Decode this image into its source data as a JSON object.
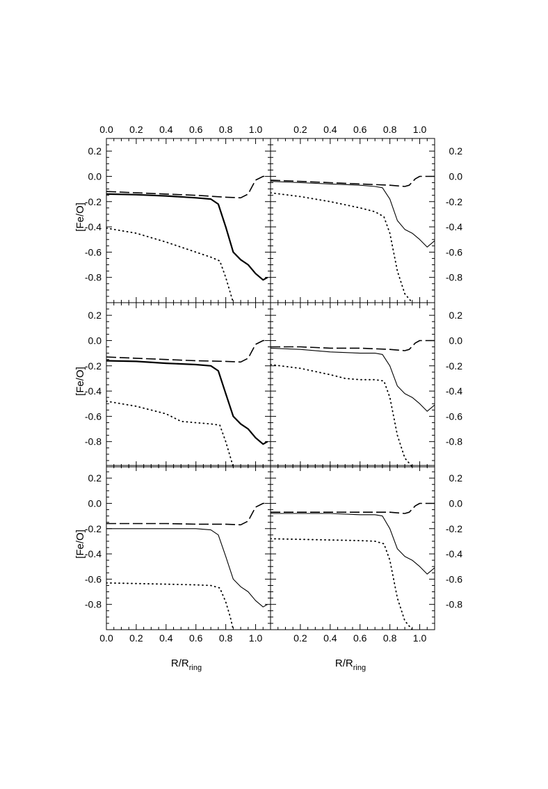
{
  "chart_data": {
    "type": "line",
    "layout": "3x2 grid of panels",
    "xlabel": "R/R",
    "xlabel_subscript": "ring",
    "ylabel": "[Fe/O]",
    "xlim": [
      0,
      1.1
    ],
    "ylim": [
      -1.0,
      0.3
    ],
    "x_ticks_left": [
      "0.0",
      "0.2",
      "0.4",
      "0.6",
      "0.8",
      "1.0"
    ],
    "x_ticks_right": [
      "0.2",
      "0.4",
      "0.6",
      "0.8",
      "1.0"
    ],
    "y_ticks": [
      "0.2",
      "0.0",
      "-0.2",
      "-0.4",
      "-0.6",
      "-0.8"
    ],
    "grid": false,
    "legend": "none",
    "line_color": "#000000",
    "panels": [
      {
        "row": 1,
        "col": 1,
        "series": [
          {
            "style": "solid",
            "width": "thick",
            "x": [
              0,
              0.2,
              0.4,
              0.6,
              0.7,
              0.75,
              0.8,
              0.85,
              0.9,
              0.95,
              1.0,
              1.05,
              1.08
            ],
            "y": [
              -0.14,
              -0.145,
              -0.155,
              -0.17,
              -0.18,
              -0.22,
              -0.4,
              -0.6,
              -0.66,
              -0.7,
              -0.77,
              -0.82,
              -0.8
            ]
          },
          {
            "style": "dashed",
            "x": [
              0,
              0.2,
              0.4,
              0.6,
              0.8,
              0.9,
              0.95,
              1.0,
              1.05,
              1.08
            ],
            "y": [
              -0.12,
              -0.13,
              -0.14,
              -0.15,
              -0.165,
              -0.17,
              -0.14,
              -0.03,
              0.0,
              0.0
            ]
          },
          {
            "style": "dotted",
            "x": [
              0,
              0.2,
              0.4,
              0.6,
              0.7,
              0.76,
              0.8,
              0.83,
              0.85
            ],
            "y": [
              -0.41,
              -0.45,
              -0.52,
              -0.6,
              -0.64,
              -0.67,
              -0.8,
              -0.92,
              -1.0
            ]
          }
        ]
      },
      {
        "row": 1,
        "col": 2,
        "series": [
          {
            "style": "solid",
            "width": "thin",
            "x": [
              0,
              0.2,
              0.4,
              0.6,
              0.7,
              0.75,
              0.8,
              0.85,
              0.9,
              0.95,
              1.0,
              1.05,
              1.1
            ],
            "y": [
              -0.04,
              -0.05,
              -0.06,
              -0.07,
              -0.08,
              -0.09,
              -0.18,
              -0.35,
              -0.42,
              -0.45,
              -0.5,
              -0.56,
              -0.51
            ]
          },
          {
            "style": "dashed",
            "x": [
              0,
              0.2,
              0.4,
              0.6,
              0.8,
              0.9,
              0.93,
              0.97,
              1.0,
              1.05,
              1.1
            ],
            "y": [
              -0.03,
              -0.04,
              -0.05,
              -0.06,
              -0.07,
              -0.08,
              -0.07,
              -0.02,
              0.0,
              0.0,
              0.0
            ]
          },
          {
            "style": "dotted",
            "x": [
              0,
              0.2,
              0.4,
              0.6,
              0.7,
              0.76,
              0.8,
              0.85,
              0.9,
              0.95
            ],
            "y": [
              -0.13,
              -0.16,
              -0.2,
              -0.25,
              -0.28,
              -0.32,
              -0.45,
              -0.75,
              -0.93,
              -1.0
            ]
          }
        ]
      },
      {
        "row": 2,
        "col": 1,
        "series": [
          {
            "style": "solid",
            "width": "thick",
            "x": [
              0,
              0.2,
              0.4,
              0.6,
              0.7,
              0.75,
              0.8,
              0.85,
              0.9,
              0.95,
              1.0,
              1.05,
              1.08
            ],
            "y": [
              -0.16,
              -0.165,
              -0.18,
              -0.19,
              -0.2,
              -0.24,
              -0.42,
              -0.6,
              -0.66,
              -0.7,
              -0.77,
              -0.82,
              -0.8
            ]
          },
          {
            "style": "dashed",
            "x": [
              0,
              0.2,
              0.4,
              0.6,
              0.8,
              0.9,
              0.95,
              1.0,
              1.05,
              1.08
            ],
            "y": [
              -0.13,
              -0.14,
              -0.15,
              -0.16,
              -0.165,
              -0.17,
              -0.14,
              -0.03,
              0.0,
              0.0
            ]
          },
          {
            "style": "dotted",
            "x": [
              0,
              0.2,
              0.4,
              0.5,
              0.6,
              0.7,
              0.76,
              0.8,
              0.83,
              0.85
            ],
            "y": [
              -0.48,
              -0.52,
              -0.58,
              -0.64,
              -0.65,
              -0.66,
              -0.67,
              -0.8,
              -0.92,
              -1.0
            ]
          }
        ]
      },
      {
        "row": 2,
        "col": 2,
        "series": [
          {
            "style": "solid",
            "width": "thin",
            "x": [
              0,
              0.2,
              0.4,
              0.6,
              0.7,
              0.75,
              0.8,
              0.85,
              0.9,
              0.95,
              1.0,
              1.05,
              1.1
            ],
            "y": [
              -0.06,
              -0.07,
              -0.09,
              -0.1,
              -0.1,
              -0.11,
              -0.2,
              -0.36,
              -0.42,
              -0.45,
              -0.5,
              -0.56,
              -0.51
            ]
          },
          {
            "style": "dashed",
            "x": [
              0,
              0.2,
              0.4,
              0.6,
              0.8,
              0.9,
              0.93,
              0.97,
              1.0,
              1.05,
              1.1
            ],
            "y": [
              -0.05,
              -0.05,
              -0.06,
              -0.06,
              -0.07,
              -0.08,
              -0.07,
              -0.02,
              0.0,
              0.0,
              0.0
            ]
          },
          {
            "style": "dotted",
            "x": [
              0,
              0.2,
              0.4,
              0.5,
              0.6,
              0.7,
              0.76,
              0.8,
              0.85,
              0.9,
              0.95
            ],
            "y": [
              -0.19,
              -0.22,
              -0.27,
              -0.3,
              -0.31,
              -0.31,
              -0.32,
              -0.45,
              -0.75,
              -0.93,
              -1.0
            ]
          }
        ]
      },
      {
        "row": 3,
        "col": 1,
        "series": [
          {
            "style": "solid",
            "width": "thin",
            "x": [
              0,
              0.2,
              0.4,
              0.6,
              0.7,
              0.75,
              0.8,
              0.85,
              0.9,
              0.95,
              1.0,
              1.05,
              1.08
            ],
            "y": [
              -0.2,
              -0.2,
              -0.2,
              -0.2,
              -0.21,
              -0.25,
              -0.42,
              -0.6,
              -0.66,
              -0.7,
              -0.77,
              -0.82,
              -0.8
            ]
          },
          {
            "style": "dashed",
            "x": [
              0,
              0.2,
              0.4,
              0.6,
              0.8,
              0.9,
              0.95,
              1.0,
              1.05,
              1.08
            ],
            "y": [
              -0.16,
              -0.16,
              -0.16,
              -0.165,
              -0.165,
              -0.17,
              -0.14,
              -0.03,
              0.0,
              0.0
            ]
          },
          {
            "style": "dotted",
            "x": [
              0,
              0.2,
              0.4,
              0.6,
              0.7,
              0.76,
              0.8,
              0.83,
              0.85
            ],
            "y": [
              -0.63,
              -0.635,
              -0.64,
              -0.645,
              -0.65,
              -0.67,
              -0.78,
              -0.9,
              -1.0
            ]
          }
        ]
      },
      {
        "row": 3,
        "col": 2,
        "series": [
          {
            "style": "solid",
            "width": "thin",
            "x": [
              0,
              0.2,
              0.4,
              0.6,
              0.7,
              0.75,
              0.8,
              0.85,
              0.9,
              0.95,
              1.0,
              1.05,
              1.1
            ],
            "y": [
              -0.08,
              -0.08,
              -0.08,
              -0.09,
              -0.09,
              -0.1,
              -0.2,
              -0.36,
              -0.42,
              -0.45,
              -0.5,
              -0.56,
              -0.51
            ]
          },
          {
            "style": "dashed",
            "x": [
              0,
              0.2,
              0.4,
              0.6,
              0.8,
              0.9,
              0.93,
              0.97,
              1.0,
              1.05,
              1.1
            ],
            "y": [
              -0.07,
              -0.07,
              -0.07,
              -0.07,
              -0.07,
              -0.08,
              -0.07,
              -0.02,
              0.0,
              0.0,
              0.0
            ]
          },
          {
            "style": "dotted",
            "x": [
              0,
              0.2,
              0.4,
              0.6,
              0.7,
              0.76,
              0.8,
              0.85,
              0.9,
              0.95
            ],
            "y": [
              -0.28,
              -0.285,
              -0.29,
              -0.295,
              -0.3,
              -0.32,
              -0.45,
              -0.75,
              -0.93,
              -1.0
            ]
          }
        ]
      }
    ]
  }
}
